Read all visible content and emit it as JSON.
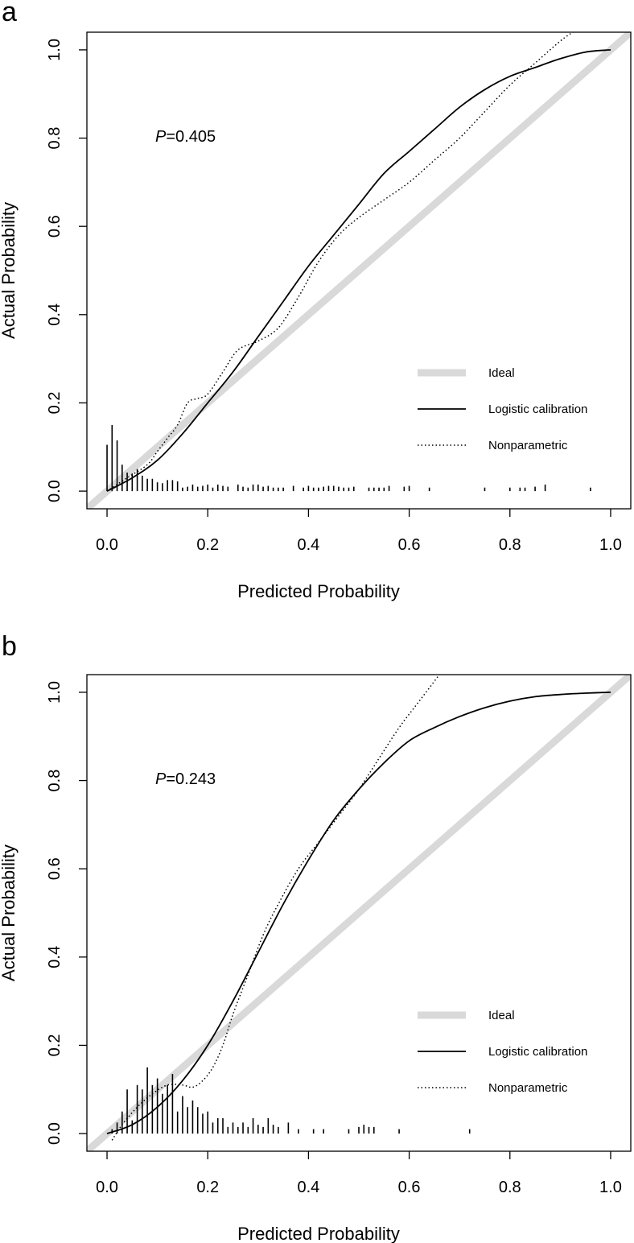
{
  "chart_data": [
    {
      "type": "line",
      "panel_label": "a",
      "xlabel": "Predicted Probability",
      "ylabel": "Actual Probability",
      "xlim": [
        -0.04,
        1.04
      ],
      "ylim": [
        -0.04,
        1.04
      ],
      "xticks": [
        "0.0",
        "0.2",
        "0.4",
        "0.6",
        "0.8",
        "1.0"
      ],
      "yticks": [
        "0.0",
        "0.2",
        "0.4",
        "0.6",
        "0.8",
        "1.0"
      ],
      "annotation": {
        "italic": "P",
        "text": "=0.405"
      },
      "legend": {
        "position": "bottom-right",
        "entries": [
          {
            "label": "Ideal",
            "style": "thick-gray"
          },
          {
            "label": "Logistic calibration",
            "style": "solid"
          },
          {
            "label": "Nonparametric",
            "style": "dotted"
          }
        ]
      },
      "series": [
        {
          "name": "Ideal",
          "x": [
            -0.04,
            1.04
          ],
          "y": [
            -0.04,
            1.04
          ]
        },
        {
          "name": "Logistic calibration",
          "x": [
            0.0,
            0.05,
            0.1,
            0.15,
            0.2,
            0.25,
            0.3,
            0.35,
            0.4,
            0.45,
            0.5,
            0.55,
            0.6,
            0.65,
            0.7,
            0.75,
            0.8,
            0.85,
            0.9,
            0.95,
            1.0
          ],
          "y": [
            0.0,
            0.03,
            0.07,
            0.13,
            0.2,
            0.27,
            0.35,
            0.43,
            0.51,
            0.58,
            0.65,
            0.72,
            0.77,
            0.82,
            0.87,
            0.91,
            0.94,
            0.96,
            0.98,
            0.995,
            1.0
          ]
        },
        {
          "name": "Nonparametric",
          "x": [
            0.0,
            0.04,
            0.08,
            0.1,
            0.12,
            0.14,
            0.16,
            0.18,
            0.2,
            0.23,
            0.26,
            0.3,
            0.34,
            0.38,
            0.42,
            0.46,
            0.5,
            0.55,
            0.6,
            0.65,
            0.7,
            0.75,
            0.8,
            0.85,
            0.9,
            0.925
          ],
          "y": [
            0.0,
            0.03,
            0.06,
            0.09,
            0.12,
            0.15,
            0.2,
            0.21,
            0.22,
            0.27,
            0.32,
            0.34,
            0.37,
            0.44,
            0.52,
            0.58,
            0.62,
            0.66,
            0.7,
            0.75,
            0.8,
            0.86,
            0.92,
            0.97,
            1.02,
            1.04
          ]
        }
      ],
      "histogram": {
        "x": [
          0.0,
          0.01,
          0.02,
          0.03,
          0.04,
          0.05,
          0.06,
          0.07,
          0.08,
          0.09,
          0.1,
          0.11,
          0.12,
          0.13,
          0.14,
          0.15,
          0.16,
          0.17,
          0.18,
          0.19,
          0.2,
          0.21,
          0.22,
          0.23,
          0.24,
          0.26,
          0.27,
          0.28,
          0.29,
          0.3,
          0.31,
          0.32,
          0.33,
          0.34,
          0.35,
          0.37,
          0.39,
          0.4,
          0.41,
          0.42,
          0.43,
          0.44,
          0.45,
          0.46,
          0.47,
          0.48,
          0.49,
          0.52,
          0.53,
          0.54,
          0.55,
          0.56,
          0.59,
          0.6,
          0.64,
          0.75,
          0.8,
          0.82,
          0.83,
          0.85,
          0.87,
          0.96
        ],
        "h": [
          0.105,
          0.15,
          0.115,
          0.06,
          0.042,
          0.04,
          0.05,
          0.035,
          0.028,
          0.028,
          0.02,
          0.018,
          0.025,
          0.025,
          0.022,
          0.008,
          0.01,
          0.015,
          0.01,
          0.012,
          0.015,
          0.008,
          0.015,
          0.012,
          0.01,
          0.015,
          0.01,
          0.008,
          0.015,
          0.015,
          0.01,
          0.012,
          0.008,
          0.008,
          0.008,
          0.012,
          0.008,
          0.012,
          0.008,
          0.008,
          0.01,
          0.012,
          0.012,
          0.01,
          0.008,
          0.008,
          0.01,
          0.008,
          0.008,
          0.008,
          0.008,
          0.012,
          0.01,
          0.012,
          0.008,
          0.008,
          0.008,
          0.008,
          0.008,
          0.01,
          0.015,
          0.008
        ]
      }
    },
    {
      "type": "line",
      "panel_label": "b",
      "xlabel": "Predicted Probability",
      "ylabel": "Actual Probability",
      "xlim": [
        -0.04,
        1.04
      ],
      "ylim": [
        -0.04,
        1.04
      ],
      "xticks": [
        "0.0",
        "0.2",
        "0.4",
        "0.6",
        "0.8",
        "1.0"
      ],
      "yticks": [
        "0.0",
        "0.2",
        "0.4",
        "0.6",
        "0.8",
        "1.0"
      ],
      "annotation": {
        "italic": "P",
        "text": "=0.243"
      },
      "legend": {
        "position": "bottom-right",
        "entries": [
          {
            "label": "Ideal",
            "style": "thick-gray"
          },
          {
            "label": "Logistic calibration",
            "style": "solid"
          },
          {
            "label": "Nonparametric",
            "style": "dotted"
          }
        ]
      },
      "series": [
        {
          "name": "Ideal",
          "x": [
            -0.04,
            1.04
          ],
          "y": [
            -0.04,
            1.04
          ]
        },
        {
          "name": "Logistic calibration",
          "x": [
            0.0,
            0.05,
            0.1,
            0.15,
            0.2,
            0.25,
            0.3,
            0.35,
            0.4,
            0.45,
            0.5,
            0.55,
            0.6,
            0.65,
            0.7,
            0.75,
            0.8,
            0.85,
            0.9,
            0.95,
            1.0
          ],
          "y": [
            0.0,
            0.02,
            0.06,
            0.12,
            0.2,
            0.3,
            0.41,
            0.52,
            0.62,
            0.71,
            0.78,
            0.84,
            0.89,
            0.92,
            0.945,
            0.965,
            0.98,
            0.99,
            0.995,
            0.998,
            1.0
          ]
        },
        {
          "name": "Nonparametric",
          "x": [
            0.01,
            0.03,
            0.06,
            0.09,
            0.12,
            0.15,
            0.17,
            0.19,
            0.21,
            0.23,
            0.25,
            0.28,
            0.31,
            0.34,
            0.38,
            0.42,
            0.46,
            0.5,
            0.54,
            0.58,
            0.62,
            0.66
          ],
          "y": [
            -0.015,
            0.02,
            0.06,
            0.09,
            0.11,
            0.11,
            0.105,
            0.12,
            0.15,
            0.2,
            0.27,
            0.36,
            0.45,
            0.52,
            0.6,
            0.66,
            0.72,
            0.78,
            0.85,
            0.92,
            0.98,
            1.04
          ]
        }
      ],
      "histogram": {
        "x": [
          0.01,
          0.02,
          0.03,
          0.04,
          0.05,
          0.06,
          0.07,
          0.08,
          0.09,
          0.1,
          0.11,
          0.12,
          0.13,
          0.14,
          0.15,
          0.16,
          0.17,
          0.18,
          0.19,
          0.2,
          0.21,
          0.22,
          0.23,
          0.24,
          0.25,
          0.26,
          0.27,
          0.28,
          0.29,
          0.3,
          0.31,
          0.32,
          0.33,
          0.34,
          0.36,
          0.38,
          0.41,
          0.43,
          0.48,
          0.5,
          0.51,
          0.52,
          0.53,
          0.58,
          0.72
        ],
        "h": [
          0.01,
          0.025,
          0.05,
          0.1,
          0.03,
          0.11,
          0.1,
          0.15,
          0.11,
          0.125,
          0.09,
          0.11,
          0.135,
          0.05,
          0.085,
          0.06,
          0.075,
          0.06,
          0.045,
          0.05,
          0.025,
          0.035,
          0.035,
          0.015,
          0.025,
          0.015,
          0.025,
          0.015,
          0.035,
          0.02,
          0.015,
          0.035,
          0.02,
          0.015,
          0.025,
          0.01,
          0.01,
          0.01,
          0.01,
          0.015,
          0.02,
          0.015,
          0.015,
          0.01,
          0.01
        ]
      }
    }
  ]
}
